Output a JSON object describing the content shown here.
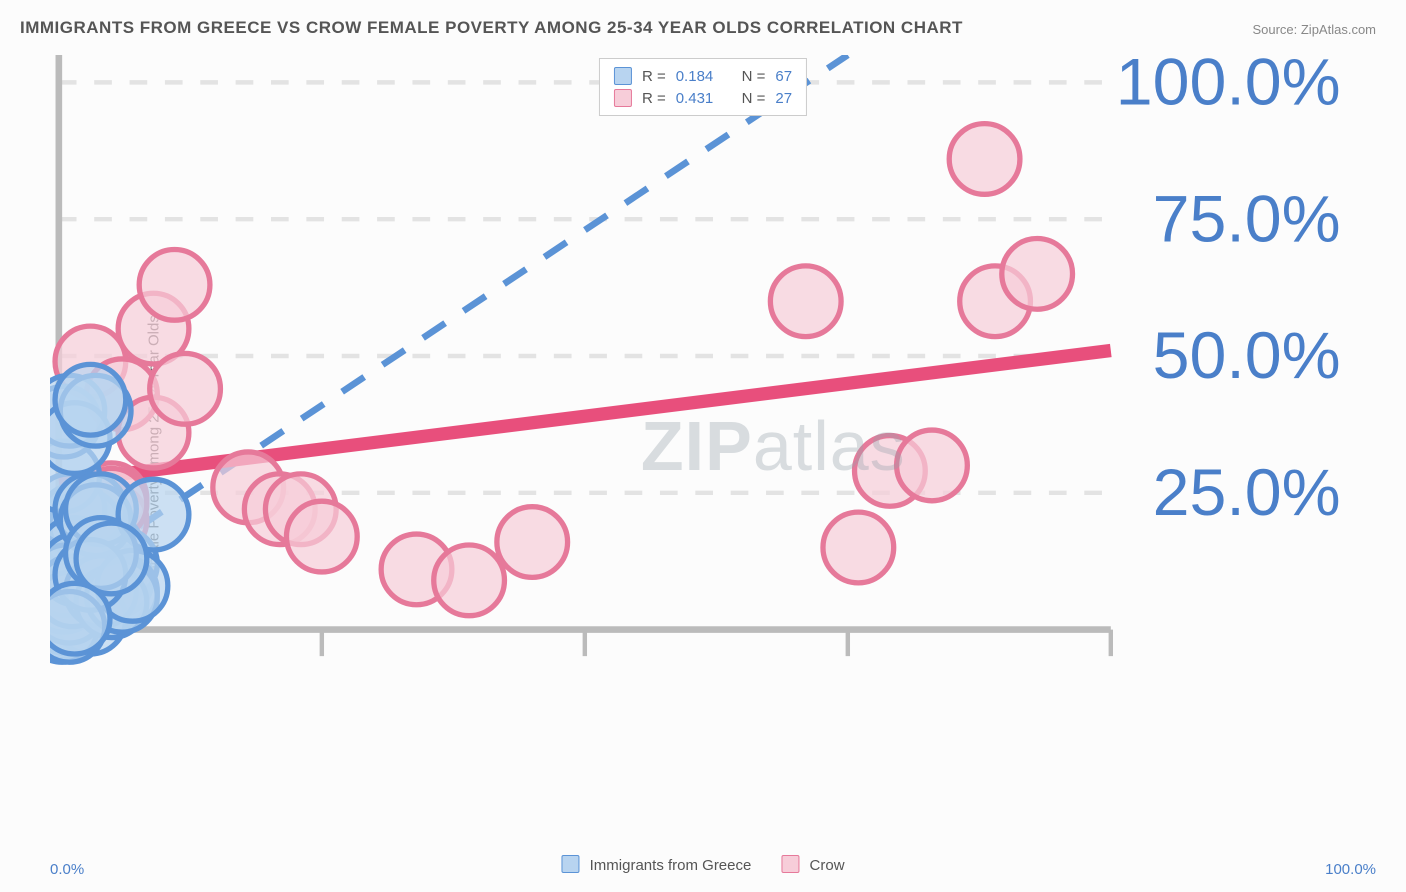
{
  "title": "IMMIGRANTS FROM GREECE VS CROW FEMALE POVERTY AMONG 25-34 YEAR OLDS CORRELATION CHART",
  "source": "Source: ZipAtlas.com",
  "watermark_bold": "ZIP",
  "watermark_light": "atlas",
  "chart": {
    "type": "scatter",
    "y_label": "Female Poverty Among 25-34 Year Olds",
    "xlim": [
      0,
      100
    ],
    "ylim": [
      0,
      105
    ],
    "x_min_label": "0.0%",
    "x_max_label": "100.0%",
    "y_ticks": [
      25,
      50,
      75,
      100
    ],
    "y_tick_labels": [
      "25.0%",
      "50.0%",
      "75.0%",
      "100.0%"
    ],
    "x_ticks": [
      25,
      50,
      75,
      100
    ],
    "background_color": "#fcfcfc",
    "grid_color": "#e3e3e3",
    "axis_color": "#bbbbbb",
    "tick_label_color": "#4a7fc9",
    "marker_radius": 8,
    "marker_stroke_width": 1.2,
    "series": [
      {
        "name": "Immigrants from Greece",
        "fill": "#b8d4f0",
        "stroke": "#5b93d6",
        "r_label": "R =",
        "r_value": "0.184",
        "n_label": "N =",
        "n_value": "67",
        "trend": {
          "x1": 0,
          "y1": 9,
          "x2": 75,
          "y2": 105,
          "dash": "6,5",
          "width": 1.5,
          "color": "#5b93d6"
        },
        "trend_short": {
          "x1": 0,
          "y1": 9,
          "x2": 6,
          "y2": 20,
          "width": 3,
          "color": "#2d6bc4"
        },
        "points": [
          [
            0.5,
            1
          ],
          [
            0.5,
            3
          ],
          [
            0.8,
            2
          ],
          [
            1,
            5
          ],
          [
            1,
            8
          ],
          [
            1.2,
            10
          ],
          [
            1.5,
            6
          ],
          [
            1.5,
            12
          ],
          [
            1.8,
            9
          ],
          [
            2,
            4
          ],
          [
            2,
            11
          ],
          [
            2,
            14
          ],
          [
            2.2,
            7
          ],
          [
            2.5,
            10
          ],
          [
            2.5,
            13
          ],
          [
            2.8,
            8
          ],
          [
            3,
            6
          ],
          [
            3,
            12
          ],
          [
            3,
            16
          ],
          [
            3.2,
            9
          ],
          [
            3.5,
            11
          ],
          [
            3.5,
            14
          ],
          [
            3.8,
            7
          ],
          [
            4,
            10
          ],
          [
            4,
            13
          ],
          [
            4.5,
            8
          ],
          [
            4.5,
            15
          ],
          [
            5,
            11
          ],
          [
            5,
            6
          ],
          [
            5.5,
            9
          ],
          [
            6,
            12
          ],
          [
            6,
            7
          ],
          [
            0.8,
            18
          ],
          [
            1.2,
            16
          ],
          [
            1.5,
            20
          ],
          [
            2,
            17
          ],
          [
            2.5,
            19
          ],
          [
            1,
            22
          ],
          [
            1.5,
            14
          ],
          [
            2,
            7
          ],
          [
            2.5,
            4
          ],
          [
            3,
            2
          ],
          [
            0.3,
            0.5
          ],
          [
            0.5,
            6
          ],
          [
            0.7,
            9
          ],
          [
            1,
            4
          ],
          [
            1.3,
            7
          ],
          [
            1.6,
            11
          ],
          [
            0.5,
            28
          ],
          [
            0.5,
            38
          ],
          [
            1,
            40
          ],
          [
            1.5,
            35
          ],
          [
            3.5,
            40
          ],
          [
            3,
            42
          ],
          [
            4,
            7
          ],
          [
            5,
            5
          ],
          [
            6,
            6
          ],
          [
            7,
            8
          ],
          [
            3,
            22
          ],
          [
            3.5,
            20
          ],
          [
            4,
            22
          ],
          [
            9,
            21
          ],
          [
            3,
            10
          ],
          [
            4,
            14
          ],
          [
            5,
            13
          ],
          [
            1,
            0.5
          ],
          [
            1.5,
            2
          ]
        ]
      },
      {
        "name": "Crow",
        "fill": "#f7cdd9",
        "stroke": "#e6799a",
        "r_label": "R =",
        "r_value": "0.431",
        "n_label": "N =",
        "n_value": "27",
        "trend": {
          "x1": 0,
          "y1": 27,
          "x2": 100,
          "y2": 51,
          "dash": "none",
          "width": 3,
          "color": "#e84f7c"
        },
        "points": [
          [
            3,
            49
          ],
          [
            5,
            24
          ],
          [
            6,
            43
          ],
          [
            9,
            55
          ],
          [
            9,
            36
          ],
          [
            11,
            63
          ],
          [
            12,
            44
          ],
          [
            18,
            26
          ],
          [
            21,
            22
          ],
          [
            23,
            22
          ],
          [
            25,
            17
          ],
          [
            34,
            11
          ],
          [
            39,
            9
          ],
          [
            45,
            16
          ],
          [
            71,
            60
          ],
          [
            76,
            15
          ],
          [
            79,
            29
          ],
          [
            83,
            30
          ],
          [
            88,
            86
          ],
          [
            89,
            60
          ],
          [
            93,
            65
          ],
          [
            3,
            22
          ],
          [
            4,
            16
          ],
          [
            5,
            20
          ],
          [
            2,
            13
          ],
          [
            3,
            19
          ],
          [
            5,
            23
          ]
        ]
      }
    ],
    "legend_bottom": [
      {
        "label": "Immigrants from Greece",
        "fill": "#b8d4f0",
        "stroke": "#5b93d6"
      },
      {
        "label": "Crow",
        "fill": "#f7cdd9",
        "stroke": "#e6799a"
      }
    ]
  }
}
